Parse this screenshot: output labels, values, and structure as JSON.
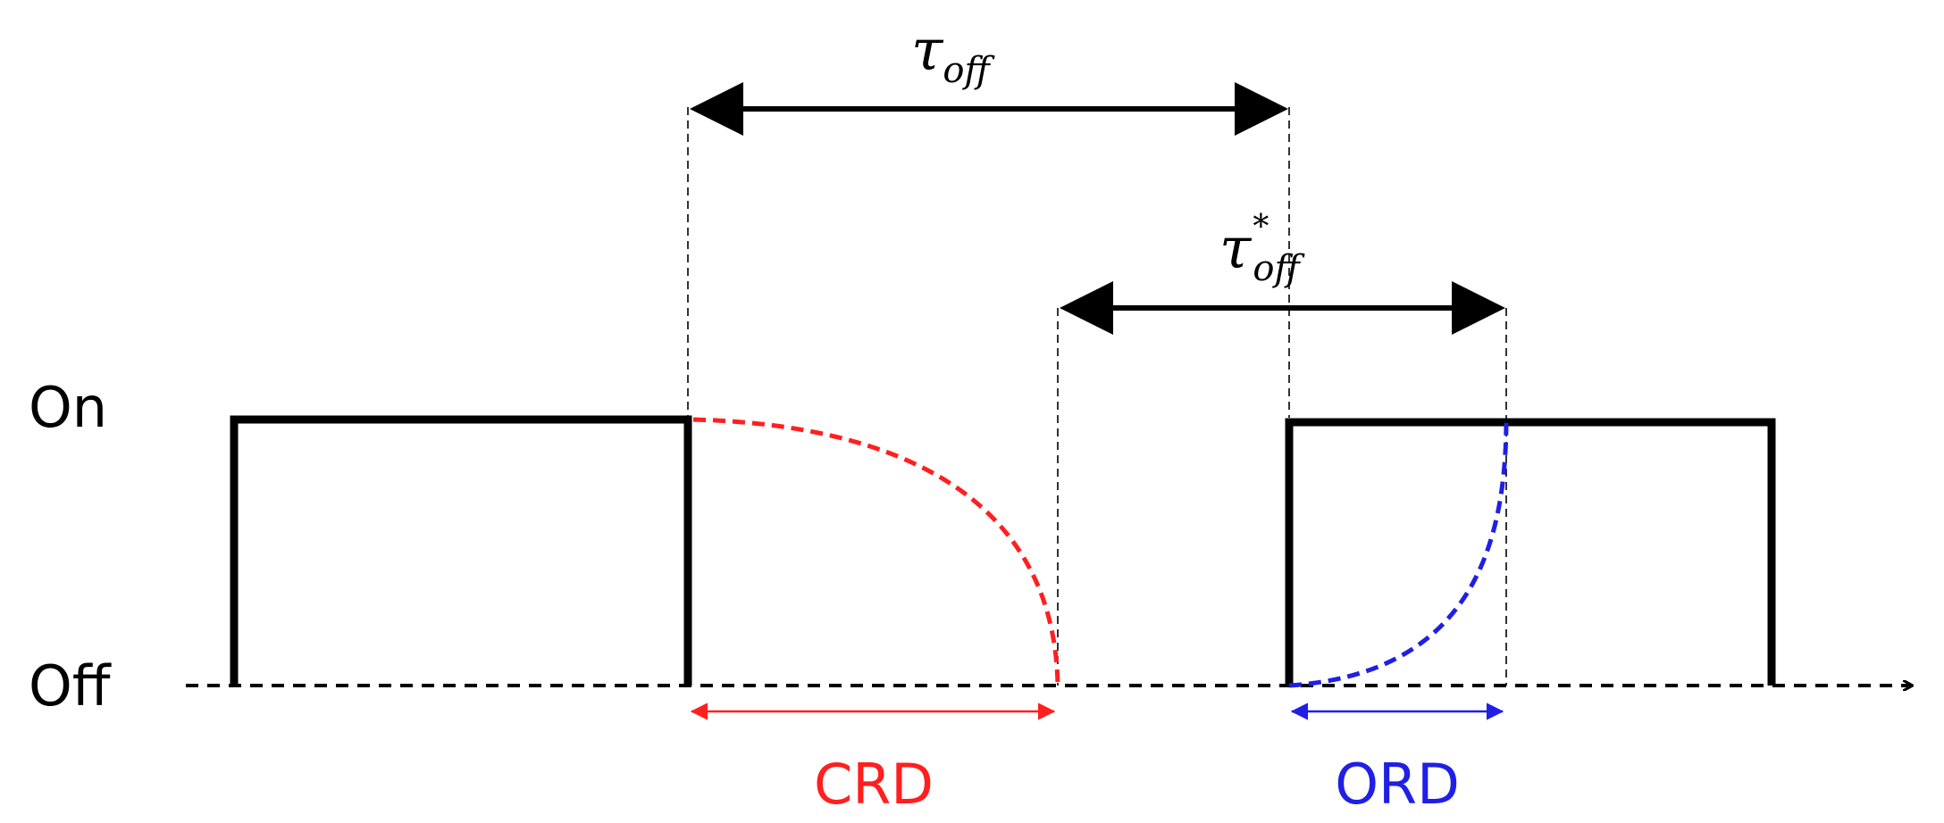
{
  "labels": {
    "on": "On",
    "off": "Off",
    "tau_symbol": "τ",
    "tau_subscript": "off",
    "tau_star_symbol": "τ",
    "tau_star_superscript": "*",
    "tau_star_subscript": "off",
    "crd": "CRD",
    "ord": "ORD"
  },
  "colors": {
    "signal": "#000000",
    "crd": "#ff1f1f",
    "ord": "#1f1fe6",
    "guide": "#000000"
  }
}
